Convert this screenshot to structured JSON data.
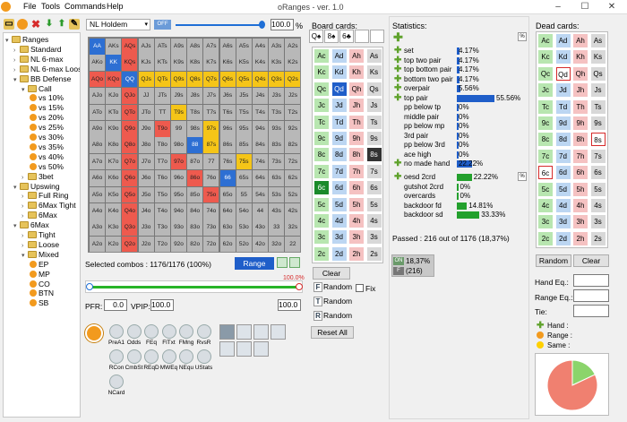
{
  "app": {
    "title": "oRanges - ver. 1.0"
  },
  "menu": [
    "File",
    "Tools",
    "Commands",
    "Help"
  ],
  "toolbar": {
    "game": "NL Holdem",
    "toggle": "OFF",
    "percent": "100.0",
    "pct_sign": "%"
  },
  "tree": [
    {
      "label": "Ranges",
      "lvl": 0,
      "kind": "folder",
      "tw": "▾"
    },
    {
      "label": "Standard",
      "lvl": 1,
      "kind": "folder",
      "tw": "›"
    },
    {
      "label": "NL 6-max",
      "lvl": 1,
      "kind": "folder",
      "tw": "›"
    },
    {
      "label": "NL 6-max Loose",
      "lvl": 1,
      "kind": "folder",
      "tw": "›"
    },
    {
      "label": "BB Defense",
      "lvl": 1,
      "kind": "folder",
      "tw": "▾"
    },
    {
      "label": "Call",
      "lvl": 2,
      "kind": "folder",
      "tw": "▾"
    },
    {
      "label": "vs 10%",
      "lvl": 3,
      "kind": "ball"
    },
    {
      "label": "vs 15%",
      "lvl": 3,
      "kind": "ball"
    },
    {
      "label": "vs 20%",
      "lvl": 3,
      "kind": "ball"
    },
    {
      "label": "vs 25%",
      "lvl": 3,
      "kind": "ball"
    },
    {
      "label": "vs 30%",
      "lvl": 3,
      "kind": "ball"
    },
    {
      "label": "vs 35%",
      "lvl": 3,
      "kind": "ball"
    },
    {
      "label": "vs 40%",
      "lvl": 3,
      "kind": "ball"
    },
    {
      "label": "vs 50%",
      "lvl": 3,
      "kind": "ball"
    },
    {
      "label": "3bet",
      "lvl": 2,
      "kind": "folder",
      "tw": "›"
    },
    {
      "label": "Upswing",
      "lvl": 1,
      "kind": "folder",
      "tw": "▾"
    },
    {
      "label": "Full Ring",
      "lvl": 2,
      "kind": "folder",
      "tw": "›"
    },
    {
      "label": "6Max Tight",
      "lvl": 2,
      "kind": "folder",
      "tw": "›"
    },
    {
      "label": "6Max",
      "lvl": 2,
      "kind": "folder",
      "tw": "›"
    },
    {
      "label": "6Max",
      "lvl": 1,
      "kind": "folder",
      "tw": "▾"
    },
    {
      "label": "Tight",
      "lvl": 2,
      "kind": "folder",
      "tw": "›"
    },
    {
      "label": "Loose",
      "lvl": 2,
      "kind": "folder",
      "tw": "›"
    },
    {
      "label": "Mixed",
      "lvl": 2,
      "kind": "folder",
      "tw": "▾"
    },
    {
      "label": "EP",
      "lvl": 3,
      "kind": "ball"
    },
    {
      "label": "MP",
      "lvl": 3,
      "kind": "ball"
    },
    {
      "label": "CO",
      "lvl": 3,
      "kind": "ball"
    },
    {
      "label": "BTN",
      "lvl": 3,
      "kind": "ball"
    },
    {
      "label": "SB",
      "lvl": 3,
      "kind": "ball"
    }
  ],
  "matrix": {
    "labels": [
      [
        "AA",
        "AKs",
        "AQs",
        "AJs",
        "ATs",
        "A9s",
        "A8s",
        "A7s",
        "A6s",
        "A5s",
        "A4s",
        "A3s",
        "A2s"
      ],
      [
        "AKo",
        "KK",
        "KQs",
        "KJs",
        "KTs",
        "K9s",
        "K8s",
        "K7s",
        "K6s",
        "K5s",
        "K4s",
        "K3s",
        "K2s"
      ],
      [
        "AQo",
        "KQo",
        "QQ",
        "QJs",
        "QTs",
        "Q9s",
        "Q8s",
        "Q7s",
        "Q6s",
        "Q5s",
        "Q4s",
        "Q3s",
        "Q2s"
      ],
      [
        "AJo",
        "KJo",
        "QJo",
        "JJ",
        "JTs",
        "J9s",
        "J8s",
        "J7s",
        "J6s",
        "J5s",
        "J4s",
        "J3s",
        "J2s"
      ],
      [
        "ATo",
        "KTo",
        "QTo",
        "JTo",
        "TT",
        "T9s",
        "T8s",
        "T7s",
        "T6s",
        "T5s",
        "T4s",
        "T3s",
        "T2s"
      ],
      [
        "A9o",
        "K9o",
        "Q9o",
        "J9o",
        "T9o",
        "99",
        "98s",
        "97s",
        "96s",
        "95s",
        "94s",
        "93s",
        "92s"
      ],
      [
        "A8o",
        "K8o",
        "Q8o",
        "J8o",
        "T8o",
        "98o",
        "88",
        "87s",
        "86s",
        "85s",
        "84s",
        "83s",
        "82s"
      ],
      [
        "A7o",
        "K7o",
        "Q7o",
        "J7o",
        "T7o",
        "97o",
        "87o",
        "77",
        "76s",
        "75s",
        "74s",
        "73s",
        "72s"
      ],
      [
        "A6o",
        "K6o",
        "Q6o",
        "J6o",
        "T6o",
        "96o",
        "86o",
        "76o",
        "66",
        "65s",
        "64s",
        "63s",
        "62s"
      ],
      [
        "A5o",
        "K5o",
        "Q5o",
        "J5o",
        "T5o",
        "95o",
        "85o",
        "75o",
        "65o",
        "55",
        "54s",
        "53s",
        "52s"
      ],
      [
        "A4o",
        "K4o",
        "Q4o",
        "J4o",
        "T4o",
        "94o",
        "84o",
        "74o",
        "64o",
        "54o",
        "44",
        "43s",
        "42s"
      ],
      [
        "A3o",
        "K3o",
        "Q3o",
        "J3o",
        "T3o",
        "93o",
        "83o",
        "73o",
        "63o",
        "53o",
        "43o",
        "33",
        "32s"
      ],
      [
        "A2o",
        "K2o",
        "Q2o",
        "J2o",
        "T2o",
        "92o",
        "82o",
        "72o",
        "62o",
        "52o",
        "42o",
        "32o",
        "22"
      ]
    ],
    "yellow": [
      [
        0,
        2
      ],
      [
        1,
        2
      ],
      [
        2,
        0
      ],
      [
        2,
        3
      ],
      [
        2,
        4
      ],
      [
        2,
        5
      ],
      [
        2,
        6
      ],
      [
        2,
        7
      ],
      [
        2,
        8
      ],
      [
        2,
        9
      ],
      [
        2,
        10
      ],
      [
        2,
        11
      ],
      [
        2,
        12
      ],
      [
        4,
        5
      ],
      [
        5,
        7
      ],
      [
        6,
        7
      ],
      [
        7,
        9
      ]
    ],
    "blue": [
      [
        0,
        0
      ],
      [
        1,
        1
      ],
      [
        2,
        2
      ],
      [
        6,
        6
      ],
      [
        8,
        8
      ]
    ],
    "red": [
      [
        2,
        0
      ],
      [
        2,
        1
      ],
      [
        4,
        2
      ],
      [
        5,
        4
      ],
      [
        6,
        2
      ],
      [
        7,
        5
      ],
      [
        8,
        6
      ],
      [
        9,
        7
      ],
      [
        0,
        2
      ],
      [
        1,
        2
      ],
      [
        2,
        2
      ],
      [
        3,
        2
      ],
      [
        4,
        2
      ],
      [
        5,
        2
      ],
      [
        6,
        2
      ],
      [
        7,
        2
      ],
      [
        8,
        2
      ],
      [
        9,
        2
      ],
      [
        10,
        2
      ],
      [
        11,
        2
      ],
      [
        12,
        2
      ]
    ],
    "orange": [
      [
        4,
        5
      ],
      [
        5,
        7
      ],
      [
        6,
        7
      ],
      [
        7,
        9
      ]
    ]
  },
  "selected": {
    "label": "Selected combos : 1176/1176 (100%)",
    "range_btn": "Range"
  },
  "slider": {
    "value": "100.0%"
  },
  "pfr": {
    "label": "PFR:",
    "value": "0.0",
    "vpip_label": "VPIP:",
    "vpip_value": "100.0",
    "right_value": "100.0"
  },
  "tools": [
    "PreA1",
    "Odds",
    "FEq",
    "FlTxt",
    "FMng",
    "RvsR",
    "RCon",
    "CmbSt",
    "REqD",
    "MWEq",
    "NEqu",
    "UStats",
    "NCard"
  ],
  "board": {
    "title": "Board cards:",
    "cards": [
      "Q♠",
      "8♠",
      "6♣"
    ],
    "grid": [
      [
        "Ac",
        "Ad",
        "Ah",
        "As"
      ],
      [
        "Kc",
        "Kd",
        "Kh",
        "Ks"
      ],
      [
        "Qc",
        "Qd",
        "Qh",
        "Qs"
      ],
      [
        "Jc",
        "Jd",
        "Jh",
        "Js"
      ],
      [
        "Tc",
        "Td",
        "Th",
        "Ts"
      ],
      [
        "9c",
        "9d",
        "9h",
        "9s"
      ],
      [
        "8c",
        "8d",
        "8h",
        "8s"
      ],
      [
        "7c",
        "7d",
        "7h",
        "7s"
      ],
      [
        "6c",
        "6d",
        "6h",
        "6s"
      ],
      [
        "5c",
        "5d",
        "5h",
        "5s"
      ],
      [
        "4c",
        "4d",
        "4h",
        "4s"
      ],
      [
        "3c",
        "3d",
        "3h",
        "3s"
      ],
      [
        "2c",
        "2d",
        "2h",
        "2s"
      ]
    ],
    "used": [
      [
        2,
        1
      ],
      [
        6,
        3
      ],
      [
        8,
        0
      ]
    ],
    "clear": "Clear",
    "random1": "Random",
    "random2": "Random",
    "random3": "Random",
    "fix": "Fix",
    "reset": "Reset All"
  },
  "stats": {
    "title": "Statistics:",
    "rows": [
      {
        "label": "set",
        "pct": "4.17%",
        "v": 4.17
      },
      {
        "label": "top two pair",
        "pct": "4.17%",
        "v": 4.17
      },
      {
        "label": "top bottom pair",
        "pct": "4.17%",
        "v": 4.17
      },
      {
        "label": "bottom two pair",
        "pct": "4.17%",
        "v": 4.17
      },
      {
        "label": "overpair",
        "pct": "5.56%",
        "v": 5.56
      },
      {
        "label": "top pair",
        "pct": "55.56%",
        "v": 55.56
      },
      {
        "label": "pp below tp",
        "pct": "0%",
        "v": 0
      },
      {
        "label": "middle pair",
        "pct": "0%",
        "v": 0
      },
      {
        "label": "pp below mp",
        "pct": "0%",
        "v": 0
      },
      {
        "label": "3rd pair",
        "pct": "0%",
        "v": 0
      },
      {
        "label": "pp below 3rd",
        "pct": "0%",
        "v": 0
      },
      {
        "label": "ace high",
        "pct": "0%",
        "v": 0
      },
      {
        "label": "no made hand",
        "pct": "22.22%",
        "v": 22.22
      }
    ],
    "draws": [
      {
        "label": "oesd 2crd",
        "pct": "22.22%",
        "v": 22.22
      },
      {
        "label": "gutshot 2crd",
        "pct": "0%",
        "v": 0
      },
      {
        "label": "overcards",
        "pct": "0%",
        "v": 0
      },
      {
        "label": "backdoor fd",
        "pct": "14.81%",
        "v": 14.81
      },
      {
        "label": "backdoor sd",
        "pct": "33.33%",
        "v": 33.33
      }
    ],
    "passed": "Passed : 216 out of 1176 (18,37%)",
    "on": "ON",
    "f": "F",
    "on_pct": "18,37%",
    "on_cnt": "(216)"
  },
  "dead": {
    "title": "Dead cards:",
    "marked": [
      [
        2,
        1
      ],
      [
        6,
        3
      ],
      [
        8,
        0
      ]
    ],
    "random": "Random",
    "clear": "Clear"
  },
  "eq": {
    "hand": "Hand Eq.:",
    "range": "Range Eq.:",
    "tie": "Tie:",
    "legend": [
      "Hand :",
      "Range :",
      "Same :"
    ]
  },
  "pie": {
    "values": [
      {
        "name": "Hand",
        "v": 18
      },
      {
        "name": "Range",
        "v": 82
      }
    ]
  }
}
